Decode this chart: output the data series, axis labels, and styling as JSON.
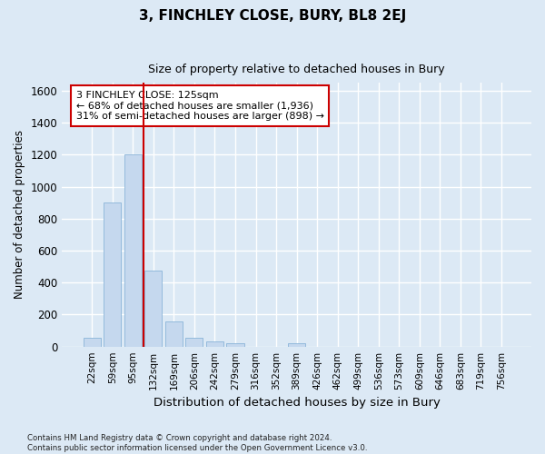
{
  "title1": "3, FINCHLEY CLOSE, BURY, BL8 2EJ",
  "title2": "Size of property relative to detached houses in Bury",
  "xlabel": "Distribution of detached houses by size in Bury",
  "ylabel": "Number of detached properties",
  "categories": [
    "22sqm",
    "59sqm",
    "95sqm",
    "132sqm",
    "169sqm",
    "206sqm",
    "242sqm",
    "279sqm",
    "316sqm",
    "352sqm",
    "389sqm",
    "426sqm",
    "462sqm",
    "499sqm",
    "536sqm",
    "573sqm",
    "609sqm",
    "646sqm",
    "683sqm",
    "719sqm",
    "756sqm"
  ],
  "values": [
    55,
    900,
    1200,
    475,
    155,
    55,
    30,
    20,
    0,
    0,
    20,
    0,
    0,
    0,
    0,
    0,
    0,
    0,
    0,
    0,
    0
  ],
  "bar_color": "#c5d8ee",
  "bar_edge_color": "#8ab4d8",
  "background_color": "#dce9f5",
  "grid_color": "#ffffff",
  "vline_color": "#cc0000",
  "vline_pos": 2.5,
  "annotation_line1": "3 FINCHLEY CLOSE: 125sqm",
  "annotation_line2": "← 68% of detached houses are smaller (1,936)",
  "annotation_line3": "31% of semi-detached houses are larger (898) →",
  "annotation_box_color": "white",
  "annotation_box_edge": "#cc0000",
  "ylim": [
    0,
    1650
  ],
  "yticks": [
    0,
    200,
    400,
    600,
    800,
    1000,
    1200,
    1400,
    1600
  ],
  "footnote": "Contains HM Land Registry data © Crown copyright and database right 2024.\nContains public sector information licensed under the Open Government Licence v3.0."
}
